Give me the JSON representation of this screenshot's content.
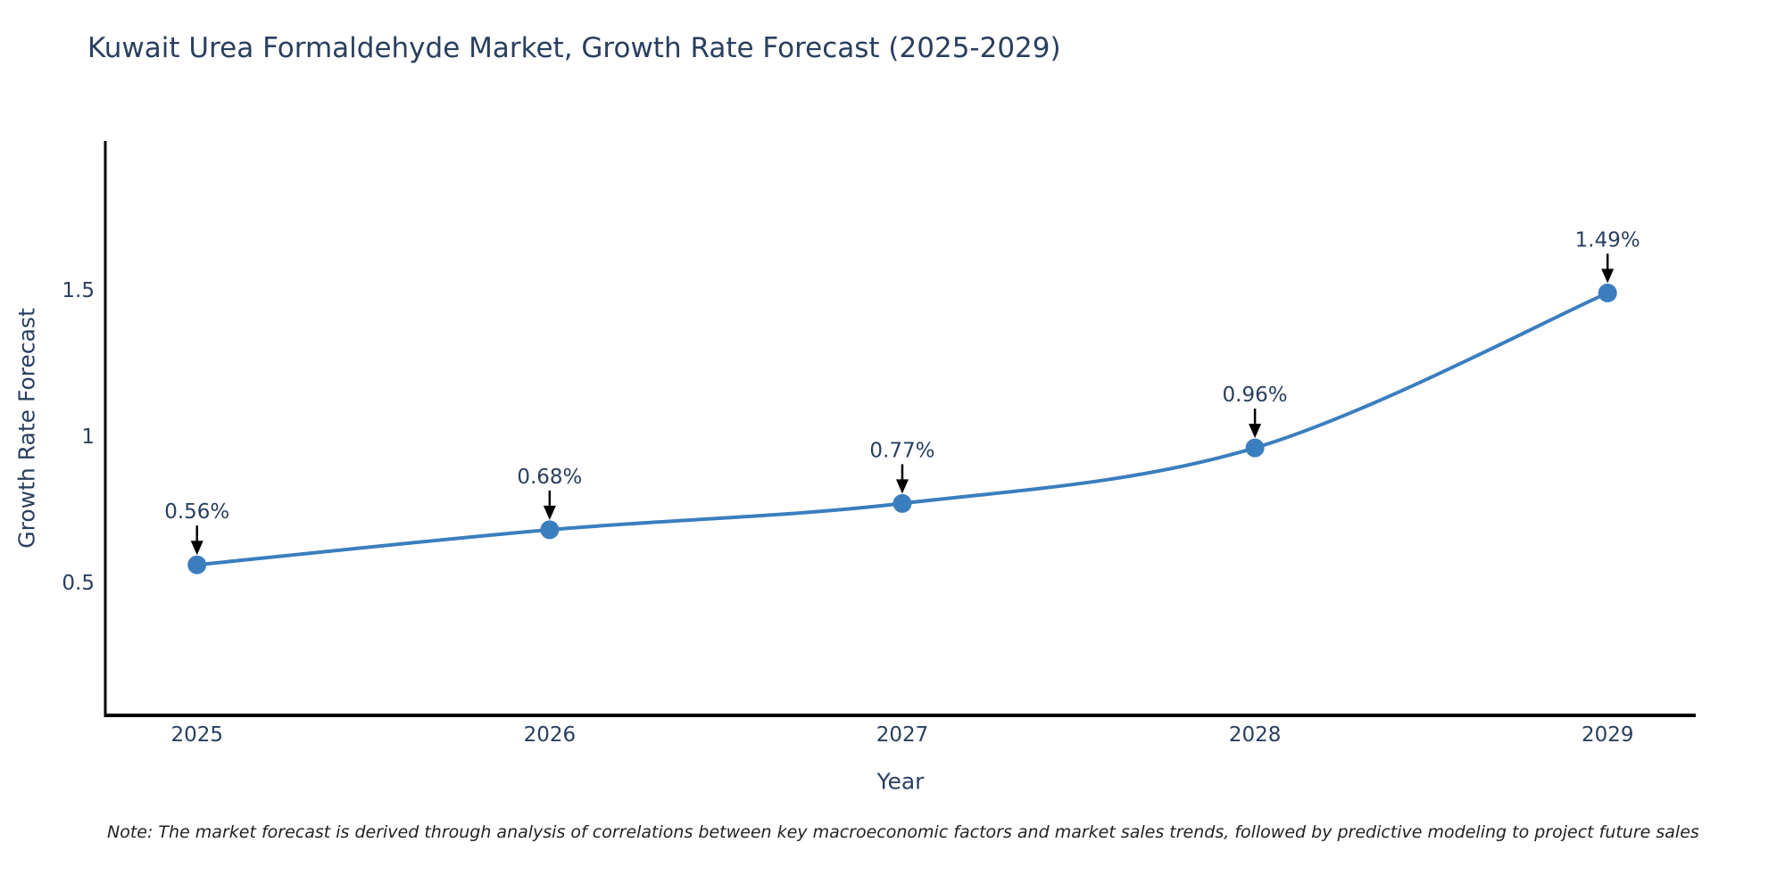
{
  "title": "Kuwait Urea Formaldehyde Market, Growth Rate Forecast (2025-2029)",
  "note": "Note: The market forecast is derived through analysis of correlations between key macroeconomic factors and market sales trends, followed by predictive modeling to project future sales",
  "colors": {
    "line": "#3a7ebf",
    "marker": "#3a7ebf",
    "text": "#2a3f5f",
    "axis": "#000000",
    "arrow": "#000000",
    "background": "#ffffff"
  },
  "chart_data": {
    "type": "line",
    "title": "Kuwait Urea Formaldehyde Market, Growth Rate Forecast (2025-2029)",
    "xlabel": "Year",
    "ylabel": "Growth Rate Forecast",
    "x": [
      2025,
      2026,
      2027,
      2028,
      2029
    ],
    "y": [
      0.56,
      0.68,
      0.77,
      0.96,
      1.49
    ],
    "point_labels": [
      "0.56%",
      "0.68%",
      "0.77%",
      "0.96%",
      "1.49%"
    ],
    "x_ticks": [
      "2025",
      "2026",
      "2027",
      "2028",
      "2029"
    ],
    "y_ticks": [
      0.5,
      1,
      1.5
    ],
    "xlim": [
      2024.74,
      2029.25
    ],
    "ylim": [
      0.045,
      2.01
    ],
    "grid": false,
    "legend": "none",
    "line_shape": "spline",
    "line_color": "#3a7ebf",
    "marker_color": "#3a7ebf",
    "text_color": "#2a3f5f",
    "arrow_color": "#000000"
  }
}
